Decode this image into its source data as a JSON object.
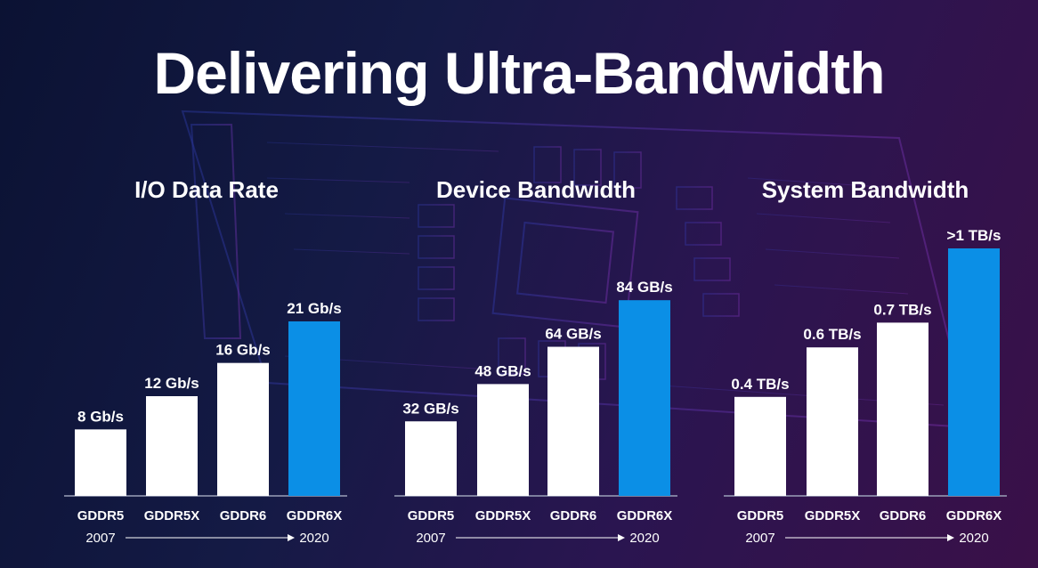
{
  "title": "Delivering Ultra-Bandwidth",
  "timeline": {
    "start": "2007",
    "end": "2020"
  },
  "colors": {
    "highlight": "#0b8fe6",
    "bar": "#ffffff",
    "background": "#141a45"
  },
  "chart_data": [
    {
      "type": "bar",
      "title": "I/O Data Rate",
      "unit": "Gb/s",
      "categories": [
        "GDDR5",
        "GDDR5X",
        "GDDR6",
        "GDDR6X"
      ],
      "values": [
        8,
        12,
        16,
        21
      ],
      "labels": [
        "8 Gb/s",
        "12 Gb/s",
        "16 Gb/s",
        "21 Gb/s"
      ],
      "highlight_index": 3,
      "ylim": [
        0,
        30
      ]
    },
    {
      "type": "bar",
      "title": "Device Bandwidth",
      "unit": "GB/s",
      "categories": [
        "GDDR5",
        "GDDR5X",
        "GDDR6",
        "GDDR6X"
      ],
      "values": [
        32,
        48,
        64,
        84
      ],
      "labels": [
        "32 GB/s",
        "48 GB/s",
        "64 GB/s",
        "84 GB/s"
      ],
      "highlight_index": 3,
      "ylim": [
        0,
        107
      ]
    },
    {
      "type": "bar",
      "title": "System Bandwidth",
      "unit": "TB/s",
      "categories": [
        "GDDR5",
        "GDDR5X",
        "GDDR6",
        "GDDR6X"
      ],
      "values": [
        0.4,
        0.6,
        0.7,
        1.0
      ],
      "labels": [
        "0.4 TB/s",
        "0.6 TB/s",
        "0.7 TB/s",
        ">1 TB/s"
      ],
      "highlight_index": 3,
      "ylim": [
        0,
        1.0
      ]
    }
  ]
}
